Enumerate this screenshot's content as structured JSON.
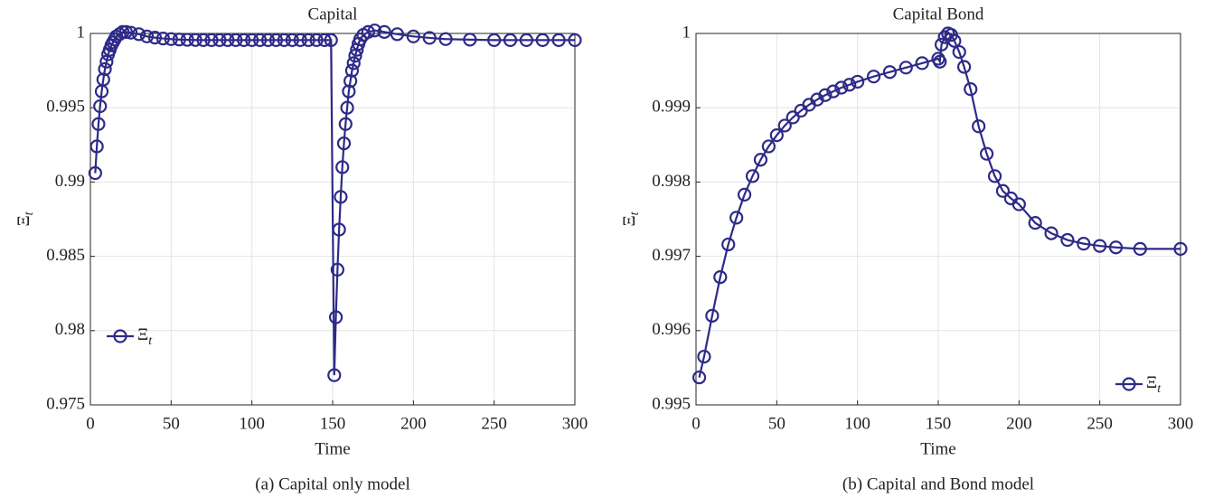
{
  "chart_data": [
    {
      "type": "line",
      "title": "Capital",
      "xlabel": "Time",
      "caption": "(a) Capital only model",
      "xlim": [
        0,
        300
      ],
      "xticks": [
        0,
        50,
        100,
        150,
        200,
        250,
        300
      ],
      "ylim": [
        0.975,
        1
      ],
      "yticks": [
        0.975,
        0.98,
        0.985,
        0.99,
        0.995,
        1
      ],
      "grid": true,
      "legend": "left",
      "x": [
        3,
        4,
        5,
        6,
        7,
        8,
        9,
        10,
        11,
        12,
        13,
        14,
        15,
        16,
        18,
        20,
        22,
        25,
        30,
        35,
        40,
        45,
        50,
        55,
        60,
        65,
        70,
        75,
        80,
        85,
        90,
        95,
        100,
        105,
        110,
        115,
        120,
        125,
        130,
        135,
        140,
        145,
        149,
        151,
        152,
        153,
        154,
        155,
        156,
        157,
        158,
        159,
        160,
        161,
        162,
        163,
        164,
        165,
        166,
        167,
        169,
        172,
        176,
        182,
        190,
        200,
        210,
        220,
        235,
        250,
        260,
        270,
        280,
        290,
        300
      ],
      "series": [
        {
          "name": "Ξ",
          "name_subscript": "t",
          "color": "#2e2a88",
          "values": [
            0.9906,
            0.9924,
            0.9939,
            0.9951,
            0.9961,
            0.9969,
            0.9976,
            0.9981,
            0.9986,
            0.9989,
            0.9992,
            0.9994,
            0.9996,
            0.9998,
            0.99995,
            1.0001,
            1.0001,
            1.00005,
            0.99995,
            0.9998,
            0.99972,
            0.99966,
            0.99962,
            0.99959,
            0.99957,
            0.99956,
            0.99955,
            0.99955,
            0.99955,
            0.99955,
            0.99955,
            0.99955,
            0.99955,
            0.99955,
            0.99955,
            0.99955,
            0.99955,
            0.99955,
            0.99955,
            0.99955,
            0.99955,
            0.99955,
            0.99955,
            0.977,
            0.9809,
            0.9841,
            0.9868,
            0.989,
            0.991,
            0.9926,
            0.9939,
            0.995,
            0.9961,
            0.9968,
            0.9975,
            0.998,
            0.9985,
            0.9989,
            0.9993,
            0.9996,
            0.9999,
            1.0001,
            1.0002,
            1.0001,
            0.99995,
            0.9998,
            0.9997,
            0.99962,
            0.99958,
            0.99955,
            0.99955,
            0.99955,
            0.99955,
            0.99955,
            0.99955
          ]
        }
      ]
    },
    {
      "type": "line",
      "title": "Capital Bond",
      "xlabel": "Time",
      "caption": "(b) Capital and Bond model",
      "xlim": [
        0,
        300
      ],
      "xticks": [
        0,
        50,
        100,
        150,
        200,
        250,
        300
      ],
      "ylim": [
        0.995,
        1
      ],
      "yticks": [
        0.995,
        0.996,
        0.997,
        0.998,
        0.999,
        1
      ],
      "grid": true,
      "legend": "lower right",
      "x": [
        2,
        5,
        10,
        15,
        20,
        25,
        30,
        35,
        40,
        45,
        50,
        55,
        60,
        65,
        70,
        75,
        80,
        85,
        90,
        95,
        100,
        110,
        120,
        130,
        140,
        150,
        151,
        152,
        154,
        156,
        158,
        160,
        163,
        166,
        170,
        175,
        180,
        185,
        190,
        195,
        200,
        210,
        220,
        230,
        240,
        250,
        260,
        275,
        300
      ],
      "series": [
        {
          "name": "Ξ",
          "name_subscript": "t",
          "color": "#2e2a88",
          "values": [
            0.99537,
            0.99565,
            0.9962,
            0.99672,
            0.99716,
            0.99752,
            0.99783,
            0.99808,
            0.9983,
            0.99848,
            0.99863,
            0.99876,
            0.99887,
            0.99896,
            0.99904,
            0.99911,
            0.99917,
            0.99922,
            0.99927,
            0.99931,
            0.99935,
            0.99942,
            0.99948,
            0.99954,
            0.9996,
            0.99966,
            0.99962,
            0.99985,
            0.99995,
            1,
            0.99998,
            0.9999,
            0.99975,
            0.99955,
            0.99925,
            0.99875,
            0.99838,
            0.99808,
            0.99788,
            0.99778,
            0.9977,
            0.99745,
            0.99731,
            0.99722,
            0.99717,
            0.99714,
            0.99712,
            0.9971,
            0.9971
          ]
        }
      ]
    }
  ]
}
